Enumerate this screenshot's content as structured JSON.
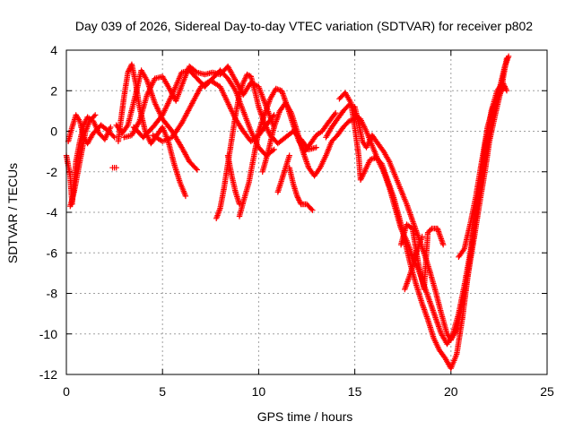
{
  "chart_data": {
    "type": "scatter",
    "title": "Day 039 of 2026, Sidereal Day-to-day VTEC variation (SDTVAR) for receiver p802",
    "xlabel": "GPS time / hours",
    "ylabel": "SDTVAR / TECUs",
    "xlim": [
      0,
      25
    ],
    "ylim": [
      -12,
      4
    ],
    "xticks": [
      0,
      5,
      10,
      15,
      20,
      25
    ],
    "yticks": [
      -12,
      -10,
      -8,
      -6,
      -4,
      -2,
      0,
      2,
      4
    ],
    "grid": true,
    "marker": "plus",
    "color": "#ff0000",
    "series": [
      {
        "values": [
          [
            0.0,
            -1.2
          ],
          [
            0.2,
            -2.2
          ],
          [
            0.3,
            -3.6
          ],
          [
            0.4,
            -2.5
          ],
          [
            0.5,
            -1.5
          ],
          [
            0.7,
            -0.5
          ],
          [
            0.9,
            0.3
          ],
          [
            1.1,
            0.7
          ],
          [
            1.4,
            0.5
          ],
          [
            1.7,
            -0.1
          ],
          [
            2.0,
            -0.4
          ],
          [
            2.3,
            0.2
          ]
        ]
      },
      {
        "values": [
          [
            0.1,
            -0.5
          ],
          [
            0.3,
            0.2
          ],
          [
            0.5,
            0.8
          ],
          [
            0.7,
            0.5
          ],
          [
            0.9,
            -0.3
          ],
          [
            1.1,
            -0.6
          ],
          [
            1.4,
            -0.1
          ],
          [
            1.8,
            0.3
          ],
          [
            2.2,
            0.0
          ],
          [
            2.5,
            -0.3
          ]
        ]
      },
      {
        "values": [
          [
            0.2,
            -3.7
          ],
          [
            0.4,
            -3.0
          ],
          [
            0.6,
            -2.0
          ],
          [
            0.8,
            -1.0
          ],
          [
            1.0,
            0.0
          ],
          [
            1.2,
            0.5
          ],
          [
            1.5,
            0.8
          ]
        ]
      },
      {
        "values": [
          [
            2.4,
            -1.8
          ],
          [
            2.6,
            -1.8
          ]
        ]
      },
      {
        "values": [
          [
            2.7,
            -0.5
          ],
          [
            2.8,
            0.3
          ],
          [
            3.0,
            1.7
          ],
          [
            3.2,
            2.9
          ],
          [
            3.4,
            3.3
          ],
          [
            3.6,
            2.4
          ],
          [
            3.8,
            1.2
          ],
          [
            4.1,
            0.0
          ],
          [
            4.4,
            -0.6
          ],
          [
            4.7,
            -0.2
          ],
          [
            5.0,
            0.2
          ],
          [
            5.3,
            -0.5
          ],
          [
            5.6,
            -1.6
          ],
          [
            5.9,
            -2.5
          ],
          [
            6.2,
            -3.2
          ]
        ]
      },
      {
        "values": [
          [
            2.6,
            0.3
          ],
          [
            2.9,
            -0.1
          ],
          [
            3.2,
            0.3
          ],
          [
            3.6,
            1.8
          ],
          [
            3.9,
            3.0
          ],
          [
            4.2,
            2.5
          ],
          [
            4.6,
            1.4
          ],
          [
            5.0,
            0.6
          ],
          [
            5.5,
            0.0
          ],
          [
            6.0,
            -0.8
          ],
          [
            6.4,
            -1.5
          ],
          [
            6.8,
            -1.9
          ]
        ]
      },
      {
        "values": [
          [
            3.0,
            -0.3
          ],
          [
            3.4,
            -0.2
          ],
          [
            3.8,
            0.5
          ],
          [
            4.2,
            1.8
          ],
          [
            4.6,
            2.6
          ],
          [
            5.0,
            2.7
          ],
          [
            5.3,
            2.2
          ],
          [
            5.7,
            1.5
          ],
          [
            6.1,
            2.5
          ],
          [
            6.4,
            3.2
          ],
          [
            6.8,
            2.9
          ],
          [
            7.2,
            2.8
          ],
          [
            7.6,
            2.9
          ],
          [
            8.0,
            2.8
          ],
          [
            8.4,
            3.2
          ],
          [
            8.8,
            2.5
          ],
          [
            9.2,
            1.8
          ],
          [
            9.6,
            2.4
          ],
          [
            10.0,
            2.2
          ],
          [
            10.4,
            1.2
          ],
          [
            10.8,
            0.2
          ]
        ]
      },
      {
        "values": [
          [
            3.5,
            0.2
          ],
          [
            4.0,
            -0.3
          ],
          [
            4.5,
            0.2
          ],
          [
            5.0,
            0.8
          ],
          [
            5.5,
            1.8
          ],
          [
            6.0,
            2.9
          ],
          [
            6.4,
            3.0
          ],
          [
            6.8,
            2.6
          ],
          [
            7.2,
            2.2
          ],
          [
            7.6,
            2.6
          ],
          [
            8.0,
            3.0
          ],
          [
            8.4,
            2.6
          ],
          [
            8.8,
            2.0
          ],
          [
            9.2,
            1.0
          ],
          [
            9.6,
            0.0
          ],
          [
            10.0,
            -0.8
          ],
          [
            10.4,
            -1.2
          ],
          [
            10.8,
            -0.9
          ]
        ]
      },
      {
        "values": [
          [
            4.5,
            -0.2
          ],
          [
            5.0,
            -0.5
          ],
          [
            5.5,
            -0.3
          ],
          [
            6.0,
            0.4
          ],
          [
            6.5,
            1.3
          ],
          [
            7.0,
            2.2
          ],
          [
            7.5,
            2.5
          ],
          [
            8.0,
            2.2
          ],
          [
            8.4,
            1.4
          ],
          [
            8.8,
            0.6
          ],
          [
            9.2,
            0.0
          ],
          [
            9.6,
            -0.5
          ],
          [
            10.0,
            -0.2
          ],
          [
            10.4,
            0.3
          ],
          [
            10.8,
            0.8
          ]
        ]
      },
      {
        "values": [
          [
            7.8,
            -4.3
          ],
          [
            8.0,
            -3.8
          ],
          [
            8.2,
            -2.8
          ],
          [
            8.4,
            -1.6
          ],
          [
            8.6,
            -0.4
          ],
          [
            8.8,
            0.8
          ],
          [
            9.0,
            1.8
          ],
          [
            9.2,
            2.4
          ],
          [
            9.4,
            2.8
          ],
          [
            9.6,
            2.7
          ],
          [
            9.8,
            2.0
          ],
          [
            10.0,
            1.2
          ],
          [
            10.3,
            0.4
          ],
          [
            10.6,
            -0.2
          ],
          [
            11.0,
            -0.6
          ],
          [
            11.4,
            -0.3
          ],
          [
            11.8,
            0.0
          ],
          [
            12.2,
            -0.4
          ],
          [
            12.6,
            -0.9
          ],
          [
            13.0,
            -0.8
          ]
        ]
      },
      {
        "values": [
          [
            9.0,
            -4.2
          ],
          [
            9.2,
            -3.5
          ],
          [
            9.5,
            -2.5
          ],
          [
            9.8,
            -1.0
          ],
          [
            10.0,
            0.0
          ],
          [
            10.3,
            0.8
          ],
          [
            10.6,
            1.6
          ],
          [
            10.9,
            2.1
          ],
          [
            11.2,
            2.0
          ],
          [
            11.5,
            1.2
          ],
          [
            11.8,
            0.3
          ],
          [
            12.1,
            -0.5
          ],
          [
            12.4,
            -1.0
          ],
          [
            12.7,
            -0.6
          ],
          [
            13.0,
            -0.2
          ],
          [
            13.3,
            0.0
          ],
          [
            13.6,
            0.4
          ],
          [
            14.0,
            0.9
          ]
        ]
      },
      {
        "values": [
          [
            8.4,
            -1.2
          ],
          [
            8.6,
            -2.2
          ],
          [
            8.8,
            -3.0
          ],
          [
            9.0,
            -3.6
          ]
        ]
      },
      {
        "values": [
          [
            10.2,
            -2.0
          ],
          [
            10.5,
            -1.0
          ],
          [
            10.8,
            0.2
          ],
          [
            11.1,
            1.0
          ],
          [
            11.4,
            1.4
          ],
          [
            11.7,
            0.9
          ],
          [
            12.0,
            0.0
          ],
          [
            12.3,
            -1.0
          ],
          [
            12.6,
            -1.8
          ],
          [
            12.9,
            -2.2
          ],
          [
            13.2,
            -1.8
          ],
          [
            13.5,
            -1.2
          ],
          [
            13.8,
            -0.5
          ],
          [
            14.1,
            -0.2
          ],
          [
            14.4,
            0.2
          ],
          [
            14.7,
            0.5
          ],
          [
            15.0,
            0.6
          ]
        ]
      },
      {
        "values": [
          [
            11.6,
            -1.8
          ],
          [
            11.8,
            -2.6
          ],
          [
            12.0,
            -3.2
          ],
          [
            12.2,
            -3.6
          ],
          [
            12.5,
            -3.6
          ],
          [
            12.8,
            -3.9
          ]
        ]
      },
      {
        "values": [
          [
            11.0,
            -3.0
          ],
          [
            11.2,
            -2.4
          ],
          [
            11.4,
            -1.8
          ],
          [
            11.6,
            -1.2
          ]
        ]
      },
      {
        "values": [
          [
            13.5,
            -0.3
          ],
          [
            13.8,
            0.2
          ],
          [
            14.1,
            0.6
          ],
          [
            14.4,
            1.0
          ],
          [
            14.7,
            1.3
          ],
          [
            15.0,
            1.2
          ],
          [
            15.2,
            0.4
          ],
          [
            15.4,
            -0.5
          ],
          [
            15.6,
            -0.8
          ],
          [
            15.9,
            -0.2
          ],
          [
            16.2,
            -0.6
          ],
          [
            16.5,
            -1.0
          ],
          [
            16.8,
            -1.5
          ],
          [
            17.1,
            -2.2
          ],
          [
            17.4,
            -2.9
          ],
          [
            17.7,
            -3.6
          ],
          [
            18.0,
            -4.4
          ],
          [
            18.3,
            -5.2
          ],
          [
            18.6,
            -6.0
          ],
          [
            18.9,
            -6.9
          ],
          [
            19.2,
            -7.9
          ],
          [
            19.5,
            -9.0
          ],
          [
            19.8,
            -10.0
          ],
          [
            20.0,
            -10.3
          ],
          [
            20.3,
            -9.8
          ],
          [
            20.6,
            -8.5
          ],
          [
            20.9,
            -7.0
          ],
          [
            21.2,
            -5.3
          ],
          [
            21.5,
            -3.5
          ],
          [
            21.8,
            -1.8
          ],
          [
            22.0,
            -0.5
          ],
          [
            22.3,
            0.8
          ],
          [
            22.6,
            2.0
          ],
          [
            22.9,
            3.6
          ]
        ]
      },
      {
        "values": [
          [
            14.2,
            1.6
          ],
          [
            14.5,
            1.9
          ],
          [
            14.8,
            1.4
          ],
          [
            15.0,
            0.2
          ],
          [
            15.2,
            -1.2
          ],
          [
            15.3,
            -2.4
          ],
          [
            15.5,
            -2.0
          ],
          [
            15.8,
            -1.4
          ],
          [
            16.1,
            -1.3
          ],
          [
            16.4,
            -1.6
          ],
          [
            16.7,
            -2.4
          ],
          [
            17.0,
            -3.2
          ],
          [
            17.3,
            -4.2
          ],
          [
            17.6,
            -5.4
          ],
          [
            17.9,
            -6.6
          ],
          [
            18.2,
            -7.6
          ],
          [
            18.5,
            -8.5
          ],
          [
            18.8,
            -9.3
          ],
          [
            19.1,
            -10.2
          ],
          [
            19.4,
            -10.8
          ],
          [
            19.7,
            -11.2
          ],
          [
            20.0,
            -11.7
          ],
          [
            20.3,
            -11.0
          ],
          [
            20.6,
            -9.2
          ],
          [
            20.9,
            -7.0
          ],
          [
            21.2,
            -4.8
          ],
          [
            21.5,
            -2.6
          ],
          [
            21.8,
            -0.6
          ],
          [
            22.1,
            1.0
          ],
          [
            22.4,
            2.0
          ],
          [
            22.7,
            2.4
          ],
          [
            22.9,
            2.0
          ]
        ]
      },
      {
        "values": [
          [
            15.0,
            0.8
          ],
          [
            15.3,
            0.6
          ],
          [
            15.6,
            0.0
          ],
          [
            15.9,
            -0.7
          ],
          [
            16.2,
            -1.4
          ],
          [
            16.5,
            -2.0
          ],
          [
            16.8,
            -2.8
          ],
          [
            17.1,
            -3.8
          ],
          [
            17.4,
            -4.8
          ],
          [
            17.7,
            -5.4
          ],
          [
            18.0,
            -6.2
          ],
          [
            18.3,
            -6.8
          ],
          [
            18.6,
            -7.6
          ],
          [
            18.9,
            -8.4
          ],
          [
            19.2,
            -9.2
          ],
          [
            19.5,
            -10.0
          ],
          [
            19.8,
            -10.5
          ],
          [
            20.1,
            -10.0
          ],
          [
            20.4,
            -9.0
          ],
          [
            20.7,
            -7.6
          ],
          [
            21.0,
            -6.0
          ],
          [
            21.3,
            -4.2
          ],
          [
            21.6,
            -2.4
          ],
          [
            21.9,
            -0.6
          ],
          [
            22.2,
            0.8
          ],
          [
            22.5,
            2.0
          ],
          [
            22.8,
            3.2
          ],
          [
            23.0,
            3.7
          ]
        ]
      },
      {
        "values": [
          [
            17.4,
            -5.6
          ],
          [
            17.7,
            -4.6
          ],
          [
            18.0,
            -4.8
          ],
          [
            18.3,
            -6.5
          ],
          [
            18.6,
            -7.8
          ],
          [
            18.8,
            -5.0
          ],
          [
            19.0,
            -4.8
          ],
          [
            19.3,
            -4.8
          ],
          [
            19.6,
            -5.6
          ]
        ]
      },
      {
        "values": [
          [
            17.6,
            -7.8
          ],
          [
            17.9,
            -7.0
          ],
          [
            18.2,
            -6.0
          ],
          [
            18.5,
            -5.2
          ]
        ]
      },
      {
        "values": [
          [
            20.4,
            -6.2
          ],
          [
            20.7,
            -5.8
          ],
          [
            21.0,
            -4.6
          ],
          [
            21.3,
            -3.2
          ],
          [
            21.6,
            -1.5
          ],
          [
            21.9,
            0.2
          ],
          [
            22.2,
            1.2
          ],
          [
            22.5,
            1.8
          ],
          [
            22.8,
            2.2
          ]
        ]
      }
    ]
  }
}
